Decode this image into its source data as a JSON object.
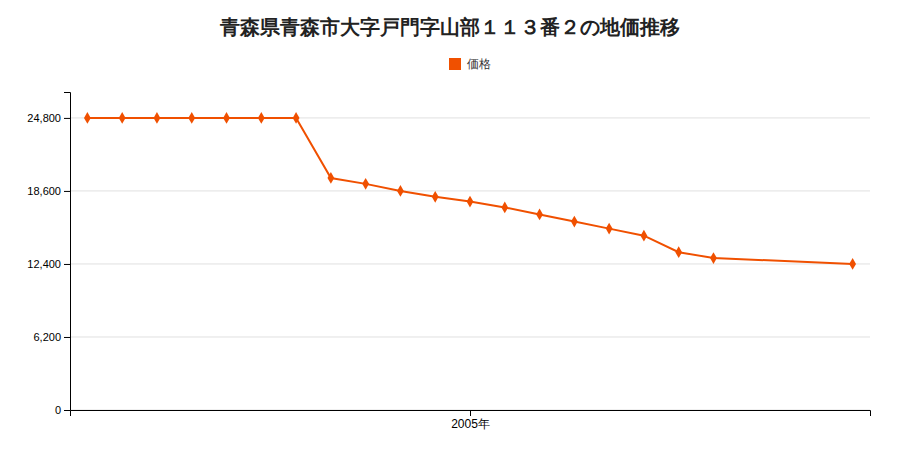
{
  "chart_data": {
    "type": "line",
    "title": "青森県青森市大字戸門字山部１１３番２の地価推移",
    "x": [
      1994,
      1995,
      1996,
      1997,
      1998,
      1999,
      2000,
      2001,
      2002,
      2003,
      2004,
      2005,
      2006,
      2007,
      2008,
      2009,
      2010,
      2011,
      2012,
      2016
    ],
    "series": [
      {
        "name": "価格",
        "color": "#f05000",
        "marker": "diamond",
        "line_style": "solid",
        "values": [
          24800,
          24800,
          24800,
          24800,
          24800,
          24800,
          24800,
          19700,
          19200,
          18600,
          18100,
          17700,
          17200,
          16600,
          16000,
          15400,
          14800,
          13400,
          12900,
          12400
        ]
      }
    ],
    "xlim": [
      1993.5,
      2016.5
    ],
    "xticks": [
      {
        "value": 2005,
        "label": "2005年"
      }
    ],
    "ylim": [
      0,
      27000
    ],
    "yticks": [
      0,
      {
        "value": 6200,
        "label": "6,200"
      },
      {
        "value": 12400,
        "label": "12,400"
      },
      {
        "value": 18600,
        "label": "18,600"
      },
      {
        "value": 24800,
        "label": "24,800"
      }
    ],
    "grid": true,
    "legend": "top"
  }
}
